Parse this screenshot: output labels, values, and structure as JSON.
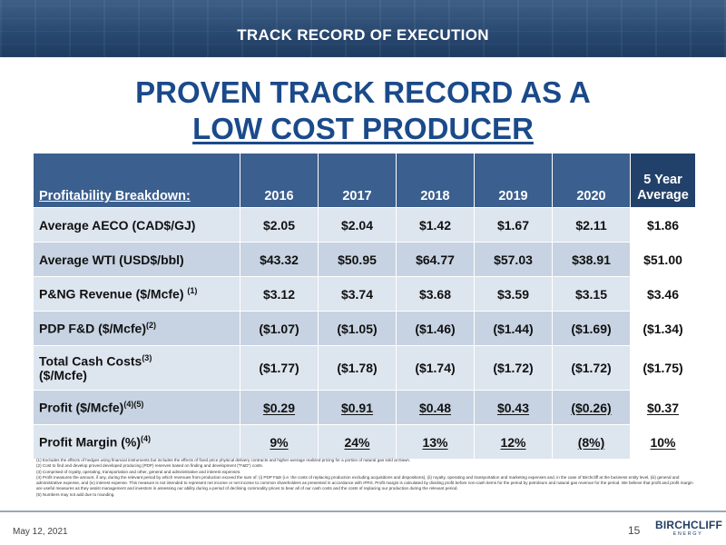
{
  "banner": {
    "title": "TRACK RECORD OF EXECUTION"
  },
  "headline": {
    "line1": "PROVEN TRACK RECORD AS A",
    "line2": "LOW COST PRODUCER"
  },
  "table": {
    "header": {
      "label": "Profitability Breakdown:",
      "years": [
        "2016",
        "2017",
        "2018",
        "2019",
        "2020"
      ],
      "avg_line1": "5 Year",
      "avg_line2": "Average"
    },
    "rows": [
      {
        "label": "Average AECO (CAD$/GJ)",
        "label_sup": "",
        "label_line2": "",
        "values": [
          "$2.05",
          "$2.04",
          "$1.42",
          "$1.67",
          "$2.11"
        ],
        "avg": "$1.86"
      },
      {
        "label": "Average WTI (USD$/bbl)",
        "label_sup": "",
        "label_line2": "",
        "values": [
          "$43.32",
          "$50.95",
          "$64.77",
          "$57.03",
          "$38.91"
        ],
        "avg": "$51.00"
      },
      {
        "label": "P&NG Revenue ($/Mcfe)",
        "label_sup": "(1)",
        "label_line2": "",
        "values": [
          "$3.12",
          "$3.74",
          "$3.68",
          "$3.59",
          "$3.15"
        ],
        "avg": "$3.46"
      },
      {
        "label": "PDP F&D ($/Mcfe)",
        "label_sup": "(2)",
        "label_line2": "",
        "values": [
          "($1.07)",
          "($1.05)",
          "($1.46)",
          "($1.44)",
          "($1.69)"
        ],
        "avg": "($1.34)"
      },
      {
        "label": "Total Cash Costs",
        "label_sup": "(3)",
        "label_line2": "($/Mcfe)",
        "values": [
          "($1.77)",
          "($1.78)",
          "($1.74)",
          "($1.72)",
          "($1.72)"
        ],
        "avg": "($1.75)"
      },
      {
        "label": "Profit ($/Mcfe)",
        "label_sup": "(4)(5)",
        "label_line2": "",
        "values": [
          "$0.29",
          "$0.91",
          "$0.48",
          "$0.43",
          "($0.26)"
        ],
        "avg": "$0.37"
      },
      {
        "label": "Profit Margin (%)",
        "label_sup": "(4)",
        "label_line2": "",
        "values": [
          "9%",
          "24%",
          "13%",
          "12%",
          "(8%)"
        ],
        "avg": "10%"
      }
    ]
  },
  "footnotes": [
    "(1) Excludes the effects of hedges using financial instruments but includes the effects of fixed price physical delivery contracts and higher average realized pricing for a portion of natural gas sold at Dawn.",
    "(2) Cost to find and develop proved developed producing (PDP) reserves based on finding and development (\"F&D\") costs.",
    "(3) Comprised of royalty, operating, transportation and other, general and administrative and interest expenses.",
    "(4) Profit measures the amount, if any, during the relevant period by which revenues from production exceed the sum of: (i) PDP F&D (i.e. the costs of replacing production excluding acquisitions and dispositions), (ii) royalty, operating and transportation and marketing expenses and, in the case of Birchcliff at the business entity level, (iii) general and administrative expense, and (iv) interest expense. This measure is not intended to represent net income or net income to common shareholders as presented in accordance with IFRS. Profit margin is calculated by dividing profit before non-cash items for the period by petroleum and natural gas revenue for the period. We believe that profit and profit margin are useful measures as they assist management and investors in assessing our ability during a period of declining commodity prices to bear all of our cash costs and the costs of replacing our production during the relevant period.",
    "(5) Numbers may not add due to rounding."
  ],
  "footer": {
    "date": "May 12, 2021",
    "page_number": "15",
    "logo_name": "BIRCHCLIFF",
    "logo_sub": "ENERGY"
  }
}
